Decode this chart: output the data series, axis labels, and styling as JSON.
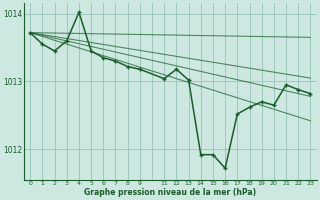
{
  "title": "Graphe pression niveau de la mer (hPa)",
  "background_color": "#cce8e0",
  "plot_bg_color": "#cce8e0",
  "grid_color": "#a0c8c0",
  "line_color": "#1a5c2a",
  "xlim": [
    -0.5,
    23.5
  ],
  "ylim": [
    1011.55,
    1014.15
  ],
  "yticks": [
    1012,
    1013,
    1014
  ],
  "xtick_labels": [
    "0",
    "1",
    "2",
    "3",
    "4",
    "5",
    "6",
    "7",
    "8",
    "9",
    "",
    "11",
    "12",
    "13",
    "14",
    "15",
    "16",
    "17",
    "18",
    "19",
    "20",
    "21",
    "22",
    "23"
  ],
  "envelope_lines": [
    {
      "x": [
        0,
        23
      ],
      "y": [
        1013.72,
        1013.65
      ]
    },
    {
      "x": [
        0,
        23
      ],
      "y": [
        1013.72,
        1013.05
      ]
    },
    {
      "x": [
        0,
        23
      ],
      "y": [
        1013.72,
        1012.78
      ]
    },
    {
      "x": [
        0,
        23
      ],
      "y": [
        1013.72,
        1012.42
      ]
    }
  ],
  "main_series_x": [
    0,
    1,
    2,
    3,
    4,
    5,
    6,
    7,
    8,
    9,
    11,
    12,
    13,
    14,
    15,
    16,
    17,
    18,
    19,
    20,
    21,
    22,
    23
  ],
  "main_series_y": [
    1013.72,
    1013.55,
    1013.45,
    1013.6,
    1014.02,
    1013.45,
    1013.35,
    1013.3,
    1013.22,
    1013.18,
    1013.04,
    1013.18,
    1013.02,
    1011.92,
    1011.92,
    1011.72,
    1012.52,
    1012.62,
    1012.7,
    1012.65,
    1012.95,
    1012.88,
    1012.82
  ]
}
